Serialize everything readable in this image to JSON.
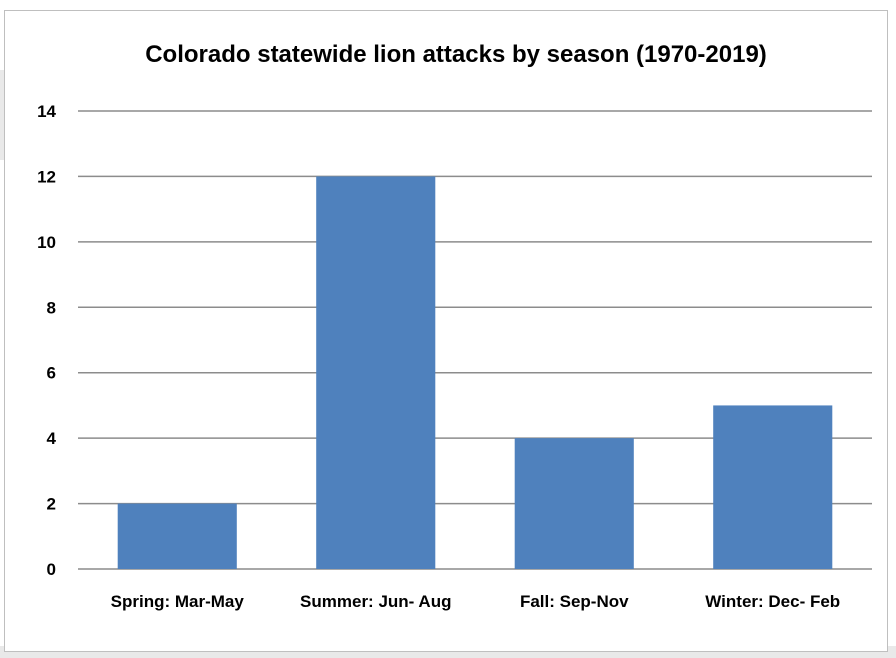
{
  "chart_data": {
    "type": "bar",
    "title": "Colorado statewide lion attacks by season (1970-2019)",
    "categories": [
      "Spring: Mar-May",
      "Summer: Jun- Aug",
      "Fall: Sep-Nov",
      "Winter: Dec- Feb"
    ],
    "values": [
      2,
      12,
      4,
      5
    ],
    "ylim": [
      0,
      14
    ],
    "yticks": [
      0,
      2,
      4,
      6,
      8,
      10,
      12,
      14
    ],
    "xlabel": "",
    "ylabel": "",
    "grid": true,
    "legend": "none",
    "bar_color": "#4f81bd",
    "gridline_color": "#8c8c8c"
  }
}
